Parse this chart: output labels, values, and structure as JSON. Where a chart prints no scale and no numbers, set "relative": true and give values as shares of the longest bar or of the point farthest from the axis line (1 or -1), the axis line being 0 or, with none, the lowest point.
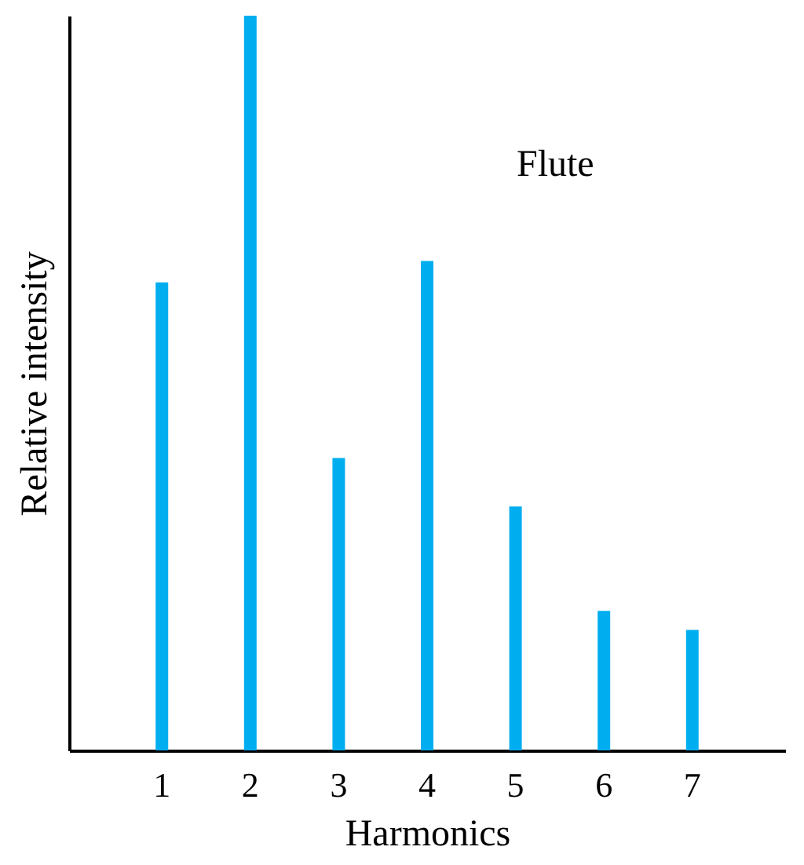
{
  "chart_data": {
    "type": "bar",
    "relative": true,
    "xlabel": "Harmonics",
    "ylabel": "Relative intensity",
    "annotations": [
      "Flute"
    ],
    "categories": [
      "1",
      "2",
      "3",
      "4",
      "5",
      "6",
      "7"
    ],
    "series": [
      {
        "color": "#00aeef",
        "values": [
          0.637,
          1,
          0.398,
          0.666,
          0.332,
          0.19,
          0.164
        ]
      }
    ],
    "grid": false
  }
}
